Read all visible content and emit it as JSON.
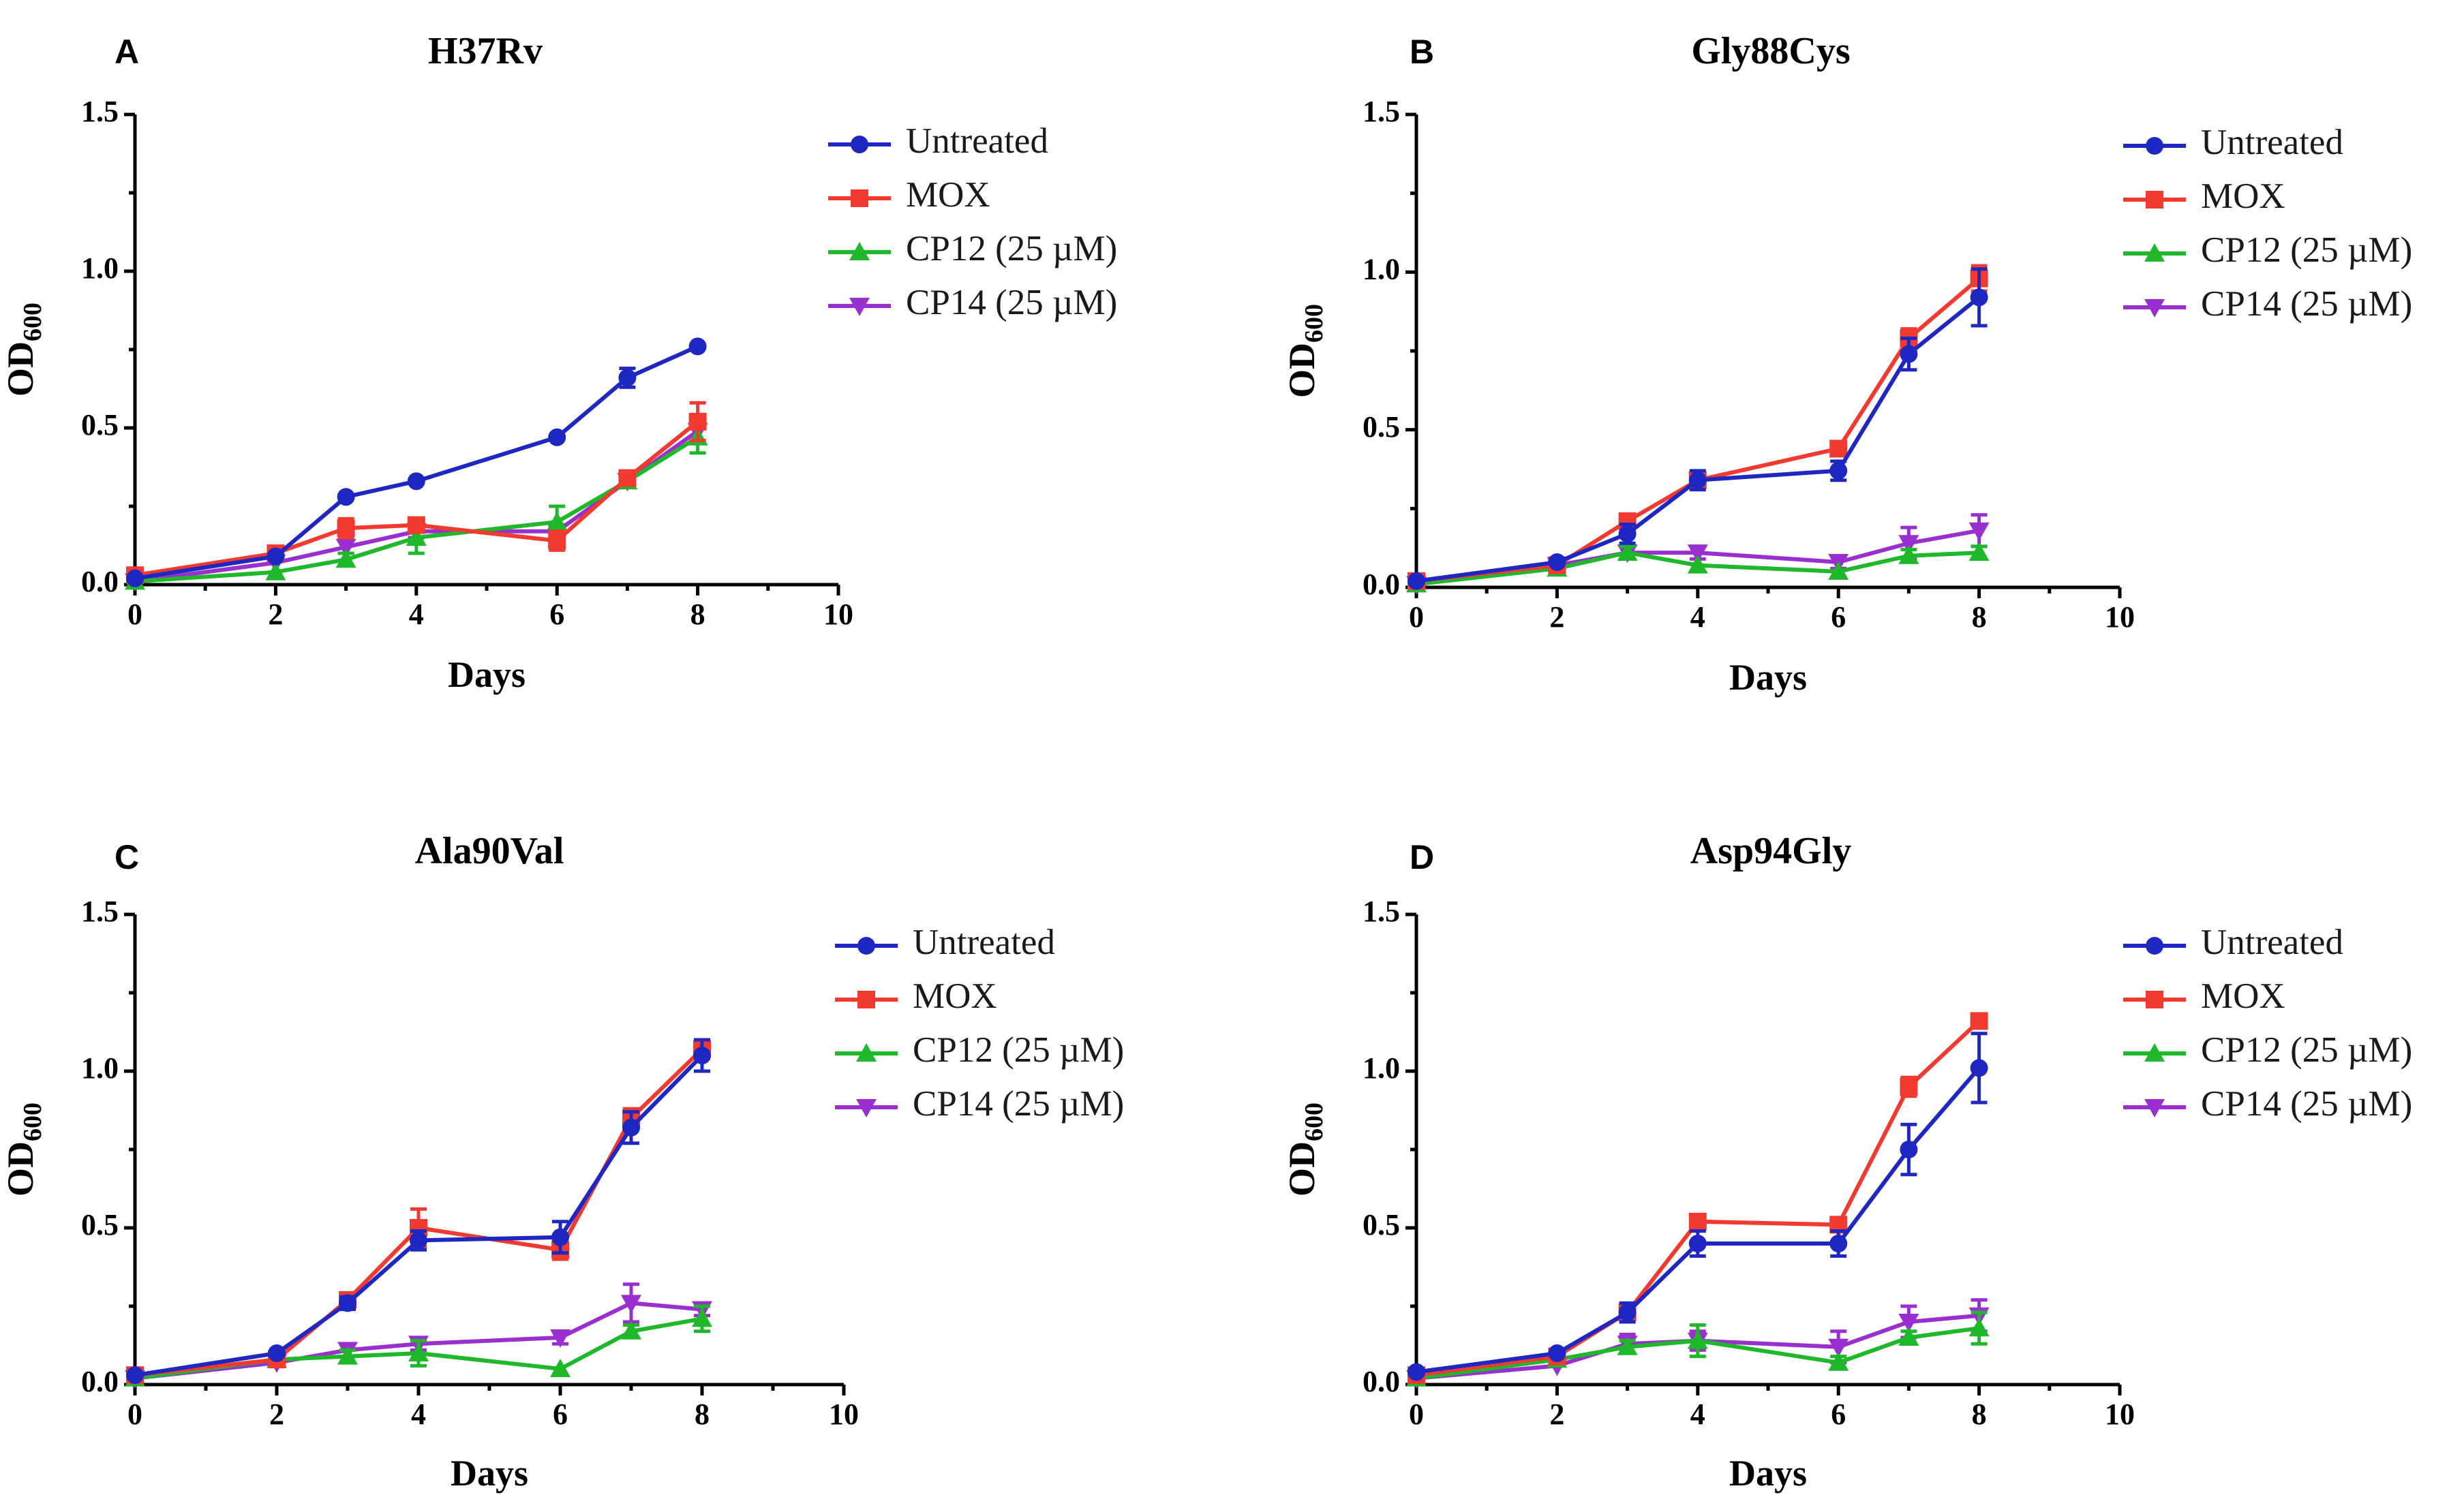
{
  "series_styles": [
    {
      "name": "Untreated",
      "color": "#1f27c2",
      "marker": "circle"
    },
    {
      "name": "MOX",
      "color": "#f23a30",
      "marker": "square"
    },
    {
      "name": "CP12 (25 µM)",
      "color": "#1fb82b",
      "marker": "triangle-up"
    },
    {
      "name": "CP14 (25 µM)",
      "color": "#9a2fcf",
      "marker": "triangle-down"
    }
  ],
  "chart_data": [
    {
      "type": "line",
      "panel": "A",
      "title": "H37Rv",
      "xlabel": "Days",
      "ylabel_main": "OD",
      "ylabel_sub": "600",
      "xlim": [
        0,
        10
      ],
      "ylim": [
        0,
        1.5
      ],
      "xticks": [
        "0",
        "2",
        "4",
        "6",
        "8",
        "10"
      ],
      "yticks": [
        "0.0",
        "0.5",
        "1.0",
        "1.5"
      ],
      "x": [
        0,
        2,
        3,
        4,
        6,
        7,
        8
      ],
      "series": [
        {
          "name": "Untreated",
          "values": [
            0.02,
            0.09,
            0.28,
            0.33,
            0.47,
            0.66,
            0.76
          ],
          "errors": [
            0.01,
            0.01,
            0.01,
            0.01,
            0.01,
            0.03,
            0.01
          ]
        },
        {
          "name": "MOX",
          "values": [
            0.03,
            0.1,
            0.18,
            0.19,
            0.14,
            0.34,
            0.52
          ],
          "errors": [
            0.01,
            0.01,
            0.03,
            0.02,
            0.03,
            0.02,
            0.06
          ]
        },
        {
          "name": "CP12 (25 µM)",
          "values": [
            0.01,
            0.04,
            0.08,
            0.15,
            0.2,
            0.33,
            0.47
          ],
          "errors": [
            0.01,
            0.01,
            0.02,
            0.05,
            0.05,
            0.02,
            0.05
          ]
        },
        {
          "name": "CP14 (25 µM)",
          "values": [
            0.01,
            0.07,
            0.12,
            0.17,
            0.17,
            0.33,
            0.49
          ],
          "errors": [
            0.01,
            0.01,
            0.02,
            0.02,
            0.02,
            0.02,
            0.04
          ]
        }
      ]
    },
    {
      "type": "line",
      "panel": "B",
      "title": "Gly88Cys",
      "xlabel": "Days",
      "ylabel_main": "OD",
      "ylabel_sub": "600",
      "xlim": [
        0,
        10
      ],
      "ylim": [
        0,
        1.5
      ],
      "xticks": [
        "0",
        "2",
        "4",
        "6",
        "8",
        "10"
      ],
      "yticks": [
        "0.0",
        "0.5",
        "1.0",
        "1.5"
      ],
      "x": [
        0,
        2,
        3,
        4,
        6,
        7,
        8
      ],
      "series": [
        {
          "name": "Untreated",
          "values": [
            0.02,
            0.08,
            0.17,
            0.34,
            0.37,
            0.74,
            0.92
          ],
          "errors": [
            0.01,
            0.01,
            0.03,
            0.03,
            0.03,
            0.05,
            0.09
          ]
        },
        {
          "name": "MOX",
          "values": [
            0.02,
            0.07,
            0.21,
            0.34,
            0.44,
            0.79,
            0.98
          ],
          "errors": [
            0.01,
            0.01,
            0.02,
            0.02,
            0.02,
            0.03,
            0.04
          ]
        },
        {
          "name": "CP12 (25 µM)",
          "values": [
            0.01,
            0.06,
            0.11,
            0.07,
            0.05,
            0.1,
            0.11
          ],
          "errors": [
            0.01,
            0.01,
            0.02,
            0.01,
            0.01,
            0.02,
            0.02
          ]
        },
        {
          "name": "CP14 (25 µM)",
          "values": [
            0.01,
            0.07,
            0.11,
            0.11,
            0.08,
            0.14,
            0.18
          ],
          "errors": [
            0.01,
            0.01,
            0.02,
            0.02,
            0.02,
            0.05,
            0.05
          ]
        }
      ]
    },
    {
      "type": "line",
      "panel": "C",
      "title": "Ala90Val",
      "xlabel": "Days",
      "ylabel_main": "OD",
      "ylabel_sub": "600",
      "xlim": [
        0,
        10
      ],
      "ylim": [
        0,
        1.5
      ],
      "xticks": [
        "0",
        "2",
        "4",
        "6",
        "8",
        "10"
      ],
      "yticks": [
        "0.0",
        "0.5",
        "1.0",
        "1.5"
      ],
      "x": [
        0,
        2,
        3,
        4,
        6,
        7,
        8
      ],
      "series": [
        {
          "name": "Untreated",
          "values": [
            0.03,
            0.1,
            0.26,
            0.46,
            0.47,
            0.82,
            1.05
          ],
          "errors": [
            0.01,
            0.01,
            0.02,
            0.03,
            0.05,
            0.05,
            0.05
          ]
        },
        {
          "name": "MOX",
          "values": [
            0.03,
            0.08,
            0.27,
            0.5,
            0.43,
            0.85,
            1.07
          ],
          "errors": [
            0.01,
            0.01,
            0.02,
            0.06,
            0.03,
            0.03,
            0.03
          ]
        },
        {
          "name": "CP12 (25 µM)",
          "values": [
            0.02,
            0.08,
            0.09,
            0.1,
            0.05,
            0.17,
            0.21
          ],
          "errors": [
            0.01,
            0.01,
            0.02,
            0.04,
            0.01,
            0.02,
            0.04
          ]
        },
        {
          "name": "CP14 (25 µM)",
          "values": [
            0.02,
            0.07,
            0.11,
            0.13,
            0.15,
            0.26,
            0.24
          ],
          "errors": [
            0.01,
            0.01,
            0.02,
            0.02,
            0.02,
            0.06,
            0.02
          ]
        }
      ]
    },
    {
      "type": "line",
      "panel": "D",
      "title": "Asp94Gly",
      "xlabel": "Days",
      "ylabel_main": "OD",
      "ylabel_sub": "600",
      "xlim": [
        0,
        10
      ],
      "ylim": [
        0,
        1.5
      ],
      "xticks": [
        "0",
        "2",
        "4",
        "6",
        "8",
        "10"
      ],
      "yticks": [
        "0.0",
        "0.5",
        "1.0",
        "1.5"
      ],
      "x": [
        0,
        2,
        3,
        4,
        6,
        7,
        8
      ],
      "series": [
        {
          "name": "Untreated",
          "values": [
            0.04,
            0.1,
            0.23,
            0.45,
            0.45,
            0.75,
            1.01
          ],
          "errors": [
            0.01,
            0.01,
            0.03,
            0.04,
            0.04,
            0.08,
            0.11
          ]
        },
        {
          "name": "MOX",
          "values": [
            0.03,
            0.09,
            0.23,
            0.52,
            0.51,
            0.95,
            1.16
          ],
          "errors": [
            0.01,
            0.01,
            0.02,
            0.02,
            0.01,
            0.03,
            0.02
          ]
        },
        {
          "name": "CP12 (25 µM)",
          "values": [
            0.02,
            0.08,
            0.12,
            0.14,
            0.07,
            0.15,
            0.18
          ],
          "errors": [
            0.01,
            0.01,
            0.02,
            0.05,
            0.02,
            0.02,
            0.05
          ]
        },
        {
          "name": "CP14 (25 µM)",
          "values": [
            0.02,
            0.06,
            0.13,
            0.14,
            0.12,
            0.2,
            0.22
          ],
          "errors": [
            0.01,
            0.01,
            0.03,
            0.03,
            0.05,
            0.05,
            0.05
          ]
        }
      ]
    }
  ]
}
